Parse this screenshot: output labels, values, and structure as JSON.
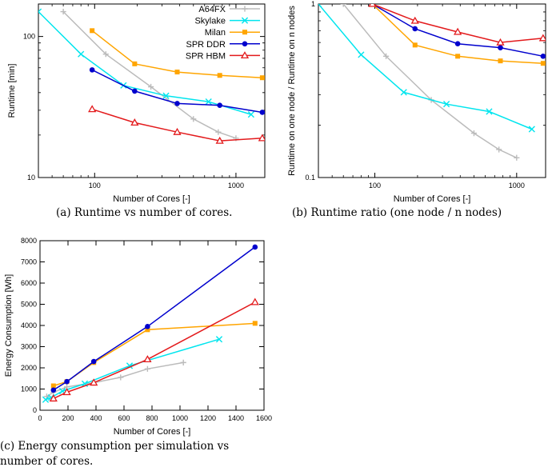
{
  "chart_data": [
    {
      "id": "a",
      "type": "line",
      "title": "",
      "xlabel": "Number of Cores [-]",
      "ylabel": "Runtime [min]",
      "xscale": "log",
      "yscale": "log",
      "xlim": [
        40,
        1600
      ],
      "ylim": [
        10,
        170
      ],
      "xticks": [
        100,
        1000
      ],
      "xtick_labels": [
        "100",
        "1000"
      ],
      "yticks": [
        10,
        100
      ],
      "ytick_labels": [
        "10",
        "100"
      ],
      "legend_position": "top-right",
      "caption": "(a) Runtime vs number of cores.",
      "series": [
        {
          "name": "A64FX",
          "color": "#bbbbbb",
          "marker": "plus",
          "x": [
            60,
            120,
            250,
            500,
            750,
            1000
          ],
          "y": [
            150,
            75,
            44,
            26,
            21,
            19
          ]
        },
        {
          "name": "Skylake",
          "color": "#00e5ee",
          "marker": "x",
          "x": [
            40,
            80,
            160,
            320,
            640,
            1280
          ],
          "y": [
            150,
            75,
            45,
            38,
            34.5,
            28
          ]
        },
        {
          "name": "Milan",
          "color": "#ffa500",
          "marker": "square",
          "x": [
            96,
            192,
            384,
            768,
            1536
          ],
          "y": [
            110,
            64,
            56,
            53,
            51
          ]
        },
        {
          "name": "SPR DDR",
          "color": "#0000cd",
          "marker": "circle",
          "x": [
            96,
            192,
            384,
            768,
            1536
          ],
          "y": [
            58,
            41,
            33.5,
            32.5,
            29
          ]
        },
        {
          "name": "SPR HBM",
          "color": "#e31a1c",
          "marker": "triangle",
          "x": [
            96,
            192,
            384,
            768,
            1536
          ],
          "y": [
            30.5,
            24.5,
            21,
            18.2,
            19
          ]
        }
      ]
    },
    {
      "id": "b",
      "type": "line",
      "title": "",
      "xlabel": "Number of Cores [-]",
      "ylabel": "Runtime on one node / Runtime on n nodes",
      "xscale": "log",
      "yscale": "log",
      "xlim": [
        40,
        1600
      ],
      "ylim": [
        0.1,
        1
      ],
      "xticks": [
        100,
        1000
      ],
      "xtick_labels": [
        "100",
        "1000"
      ],
      "yticks": [
        0.1,
        1
      ],
      "ytick_labels": [
        "0.1",
        "1"
      ],
      "caption": "(b) Runtime ratio (one node / n nodes)",
      "series": [
        {
          "name": "A64FX",
          "color": "#bbbbbb",
          "marker": "plus",
          "x": [
            60,
            120,
            250,
            500,
            750,
            1000
          ],
          "y": [
            1,
            0.5,
            0.28,
            0.18,
            0.145,
            0.13
          ]
        },
        {
          "name": "Skylake",
          "color": "#00e5ee",
          "marker": "x",
          "x": [
            40,
            80,
            160,
            320,
            640,
            1280
          ],
          "y": [
            1,
            0.51,
            0.31,
            0.265,
            0.24,
            0.19
          ]
        },
        {
          "name": "Milan",
          "color": "#ffa500",
          "marker": "square",
          "x": [
            96,
            192,
            384,
            768,
            1536
          ],
          "y": [
            1,
            0.58,
            0.5,
            0.47,
            0.455
          ]
        },
        {
          "name": "SPR DDR",
          "color": "#0000cd",
          "marker": "circle",
          "x": [
            96,
            192,
            384,
            768,
            1536
          ],
          "y": [
            1,
            0.72,
            0.59,
            0.56,
            0.5
          ]
        },
        {
          "name": "SPR HBM",
          "color": "#e31a1c",
          "marker": "triangle",
          "x": [
            96,
            192,
            384,
            768,
            1536
          ],
          "y": [
            1,
            0.8,
            0.69,
            0.6,
            0.635
          ]
        }
      ]
    },
    {
      "id": "c",
      "type": "line",
      "title": "",
      "xlabel": "Number of Cores [-]",
      "ylabel": "Energy Consumption [Wh]",
      "xscale": "linear",
      "yscale": "linear",
      "xlim": [
        0,
        1600
      ],
      "ylim": [
        0,
        8000
      ],
      "xticks": [
        0,
        200,
        400,
        600,
        800,
        1000,
        1200,
        1400,
        1600
      ],
      "xtick_labels": [
        "0",
        "200",
        "400",
        "600",
        "800",
        "1000",
        "1200",
        "1400",
        "1600"
      ],
      "yticks": [
        0,
        1000,
        2000,
        3000,
        4000,
        5000,
        6000,
        7000,
        8000
      ],
      "ytick_labels": [
        "0",
        "1000",
        "2000",
        "3000",
        "4000",
        "5000",
        "6000",
        "7000",
        "8000"
      ],
      "caption_lines": [
        "(c) Energy consumption per simulation vs",
        "number of cores."
      ],
      "series": [
        {
          "name": "A64FX",
          "color": "#bbbbbb",
          "marker": "plus",
          "x": [
            48,
            96,
            192,
            384,
            576,
            768,
            1024
          ],
          "y": [
            650,
            850,
            1100,
            1300,
            1550,
            1950,
            2250
          ]
        },
        {
          "name": "Skylake",
          "color": "#00e5ee",
          "marker": "x",
          "x": [
            40,
            80,
            160,
            320,
            640,
            1280
          ],
          "y": [
            500,
            600,
            900,
            1250,
            2100,
            3350
          ]
        },
        {
          "name": "Milan",
          "color": "#ffa500",
          "marker": "square",
          "x": [
            96,
            192,
            384,
            768,
            1536
          ],
          "y": [
            1150,
            1350,
            2250,
            3800,
            4100
          ]
        },
        {
          "name": "SPR DDR",
          "color": "#0000cd",
          "marker": "circle",
          "x": [
            96,
            192,
            384,
            768,
            1536
          ],
          "y": [
            950,
            1350,
            2300,
            3950,
            7700
          ]
        },
        {
          "name": "SPR HBM",
          "color": "#e31a1c",
          "marker": "triangle",
          "x": [
            96,
            192,
            384,
            768,
            1536
          ],
          "y": [
            550,
            850,
            1300,
            2400,
            5100
          ]
        }
      ]
    }
  ]
}
